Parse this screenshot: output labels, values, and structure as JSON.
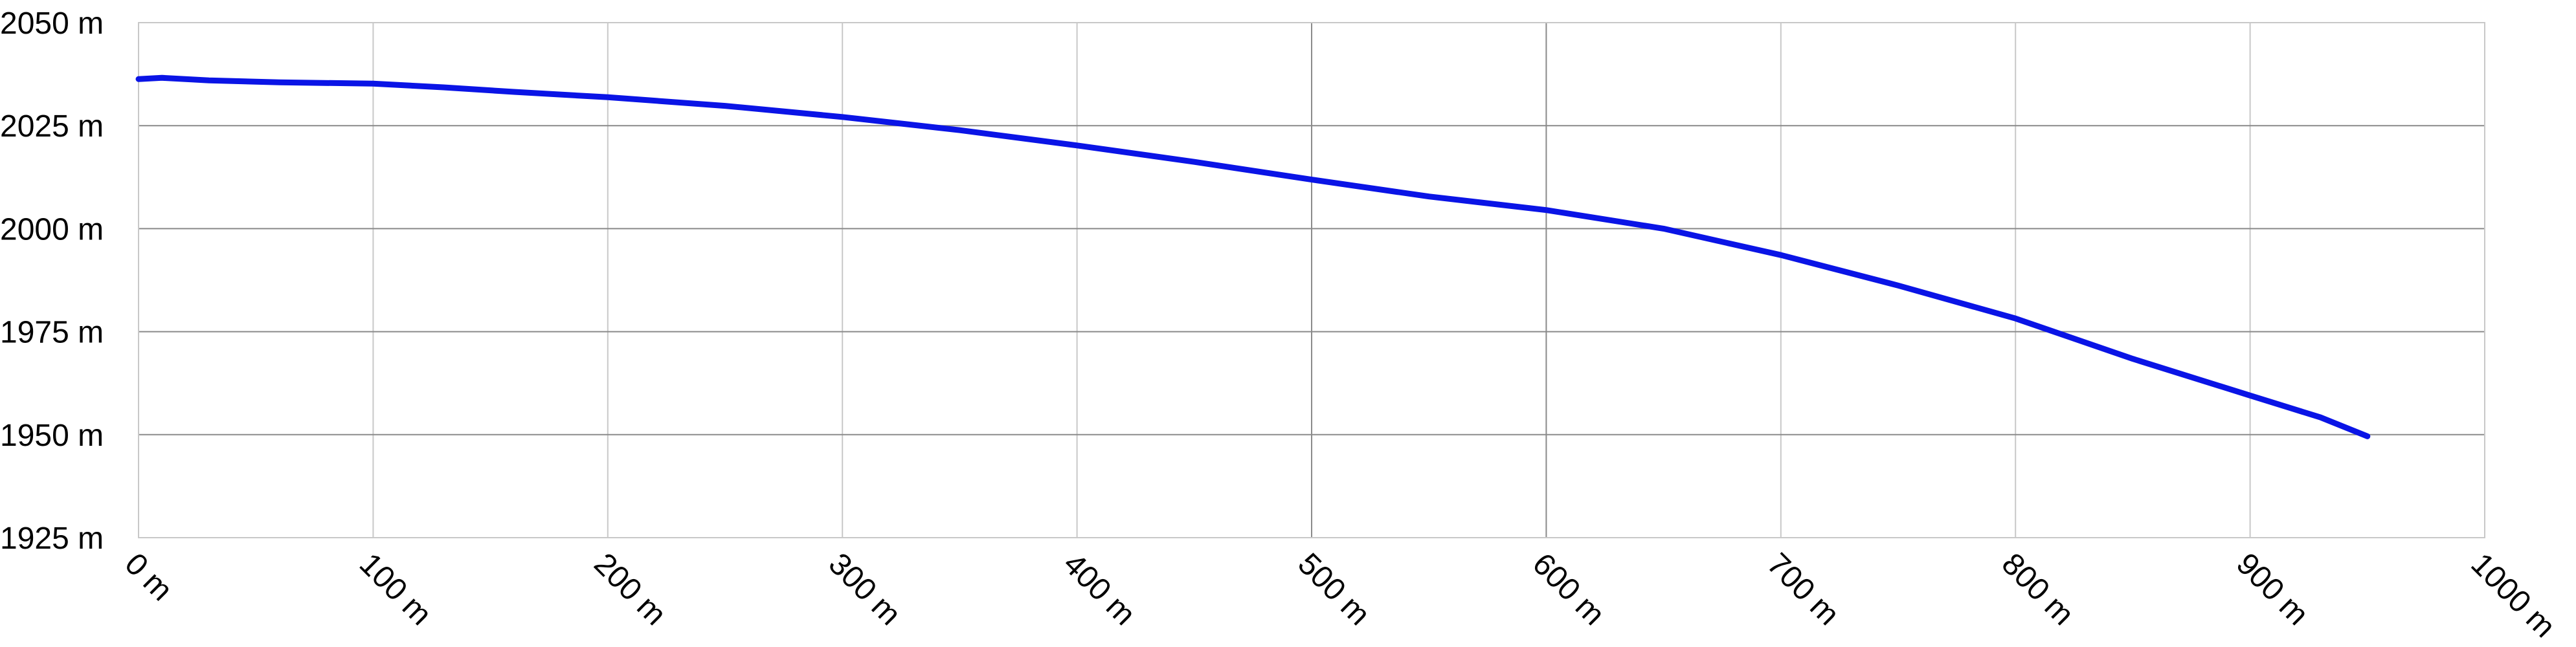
{
  "chart_data": {
    "type": "line",
    "x_unit": "m",
    "y_unit": "m",
    "xlim": [
      0,
      1000
    ],
    "ylim": [
      1925,
      2050
    ],
    "x_ticks": [
      0,
      100,
      200,
      300,
      400,
      500,
      600,
      700,
      800,
      900,
      1000
    ],
    "y_ticks": [
      1925,
      1950,
      1975,
      2000,
      2025,
      2050
    ],
    "x_tick_labels": [
      "0 m",
      "100 m",
      "200 m",
      "300 m",
      "400 m",
      "500 m",
      "600 m",
      "700 m",
      "800 m",
      "900 m",
      "1000 m"
    ],
    "y_tick_labels": [
      "1925 m",
      "1950 m",
      "1975 m",
      "2000 m",
      "2025 m",
      "2050 m"
    ],
    "grid": true,
    "series": [
      {
        "color": "#0a14e6",
        "x": [
          0,
          10,
          30,
          60,
          100,
          130,
          160,
          200,
          250,
          300,
          350,
          400,
          450,
          500,
          550,
          600,
          650,
          700,
          750,
          800,
          850,
          900,
          930,
          950
        ],
        "y": [
          2036.3,
          2036.6,
          2036,
          2035.5,
          2035.2,
          2034.3,
          2033.2,
          2031.9,
          2029.8,
          2027.1,
          2023.9,
          2020.2,
          2016.2,
          2011.9,
          2007.8,
          2004.5,
          2000,
          1993.6,
          1986.2,
          1978.2,
          1968.4,
          1959.5,
          1954.2,
          1949.6
        ]
      }
    ]
  }
}
